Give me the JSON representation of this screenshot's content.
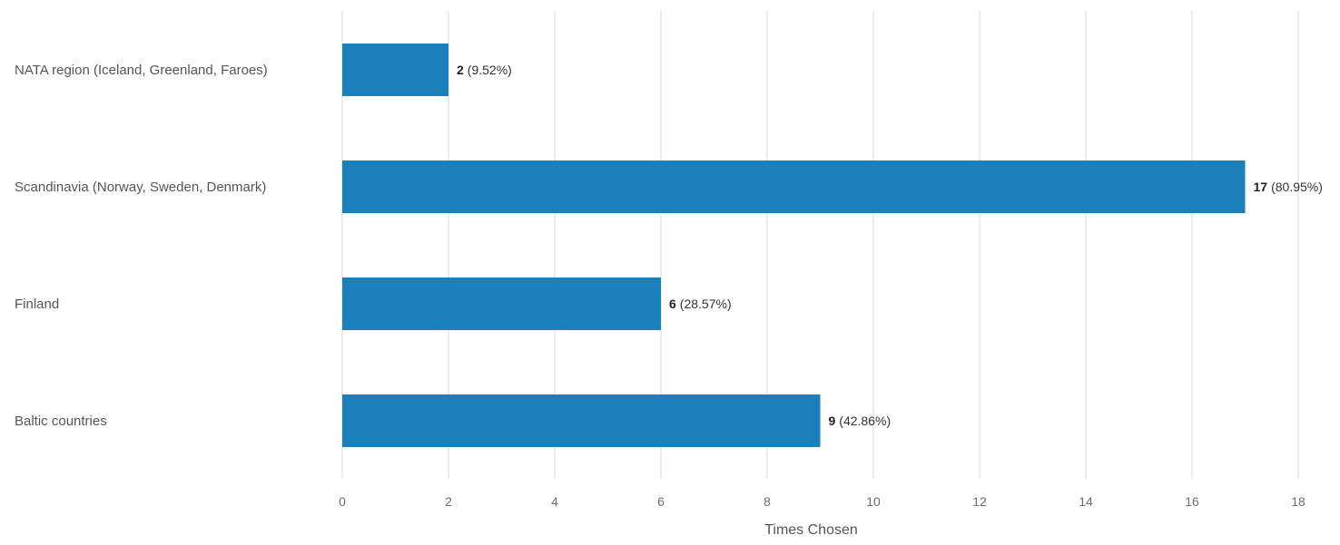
{
  "chart_data": {
    "type": "bar",
    "orientation": "horizontal",
    "categories": [
      "NATA region (Iceland, Greenland, Faroes)",
      "Scandinavia (Norway, Sweden, Denmark)",
      "Finland",
      "Baltic countries"
    ],
    "values": [
      2,
      17,
      6,
      9
    ],
    "value_labels": [
      {
        "count": "2",
        "percent": "(9.52%)"
      },
      {
        "count": "17",
        "percent": "(80.95%)"
      },
      {
        "count": "6",
        "percent": "(28.57%)"
      },
      {
        "count": "9",
        "percent": "(42.86%)"
      }
    ],
    "xlabel": "Times Chosen",
    "ylabel": "",
    "xlim": [
      0,
      18
    ],
    "xticks": [
      0,
      2,
      4,
      6,
      8,
      10,
      12,
      14,
      16,
      18
    ],
    "grid": "vertical",
    "legend": "none"
  },
  "colors": {
    "bar": "#1a80bb",
    "grid": "#e6e6e6",
    "text": "#555555"
  }
}
